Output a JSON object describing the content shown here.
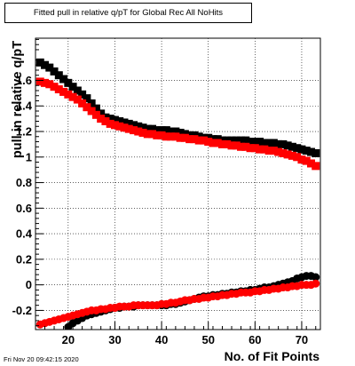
{
  "chart_data": {
    "type": "scatter",
    "title": "Fitted pull in relative q/pT for Global Rec All NoHits",
    "xlabel": "No. of Fit Points",
    "ylabel": "pull in relative q/pT",
    "xlim": [
      13,
      74
    ],
    "ylim": [
      -0.35,
      1.93
    ],
    "xticks": [
      20,
      30,
      40,
      50,
      60,
      70
    ],
    "yticks": [
      -0.2,
      0,
      0.2,
      0.4,
      0.6,
      0.8,
      1,
      1.2,
      1.4,
      1.6
    ],
    "ytick_labels": [
      "-0.2",
      "0",
      "0.2",
      "0.4",
      "0.6",
      "0.8",
      "1",
      "1.2",
      "1.4",
      "1.6"
    ],
    "grid": true,
    "series": [
      {
        "color": "#000000",
        "marker": "square",
        "points": [
          [
            14,
            1.74
          ],
          [
            15,
            1.72
          ],
          [
            16,
            1.7
          ],
          [
            17,
            1.67
          ],
          [
            18,
            1.64
          ],
          [
            19,
            1.61
          ],
          [
            20,
            1.58
          ],
          [
            21,
            1.55
          ],
          [
            22,
            1.52
          ],
          [
            23,
            1.49
          ],
          [
            24,
            1.46
          ],
          [
            25,
            1.42
          ],
          [
            26,
            1.38
          ],
          [
            27,
            1.34
          ],
          [
            28,
            1.31
          ],
          [
            29,
            1.3
          ],
          [
            30,
            1.29
          ],
          [
            31,
            1.28
          ],
          [
            32,
            1.27
          ],
          [
            33,
            1.26
          ],
          [
            34,
            1.25
          ],
          [
            35,
            1.24
          ],
          [
            36,
            1.23
          ],
          [
            37,
            1.22
          ],
          [
            38,
            1.22
          ],
          [
            39,
            1.21
          ],
          [
            40,
            1.21
          ],
          [
            41,
            1.21
          ],
          [
            42,
            1.2
          ],
          [
            43,
            1.2
          ],
          [
            44,
            1.19
          ],
          [
            45,
            1.18
          ],
          [
            46,
            1.17
          ],
          [
            47,
            1.17
          ],
          [
            48,
            1.16
          ],
          [
            49,
            1.15
          ],
          [
            50,
            1.15
          ],
          [
            51,
            1.14
          ],
          [
            52,
            1.14
          ],
          [
            53,
            1.13
          ],
          [
            54,
            1.13
          ],
          [
            55,
            1.13
          ],
          [
            56,
            1.13
          ],
          [
            57,
            1.13
          ],
          [
            58,
            1.13
          ],
          [
            59,
            1.12
          ],
          [
            60,
            1.12
          ],
          [
            61,
            1.12
          ],
          [
            62,
            1.11
          ],
          [
            63,
            1.11
          ],
          [
            64,
            1.11
          ],
          [
            65,
            1.1
          ],
          [
            66,
            1.1
          ],
          [
            67,
            1.09
          ],
          [
            68,
            1.08
          ],
          [
            69,
            1.07
          ],
          [
            70,
            1.06
          ],
          [
            71,
            1.05
          ],
          [
            72,
            1.04
          ],
          [
            73,
            1.03
          ]
        ]
      },
      {
        "color": "#ff0000",
        "marker": "square",
        "points": [
          [
            14,
            1.59
          ],
          [
            15,
            1.58
          ],
          [
            16,
            1.57
          ],
          [
            17,
            1.55
          ],
          [
            18,
            1.53
          ],
          [
            19,
            1.51
          ],
          [
            20,
            1.49
          ],
          [
            21,
            1.47
          ],
          [
            22,
            1.45
          ],
          [
            23,
            1.42
          ],
          [
            24,
            1.39
          ],
          [
            25,
            1.36
          ],
          [
            26,
            1.33
          ],
          [
            27,
            1.3
          ],
          [
            28,
            1.28
          ],
          [
            29,
            1.26
          ],
          [
            30,
            1.25
          ],
          [
            31,
            1.24
          ],
          [
            32,
            1.23
          ],
          [
            33,
            1.22
          ],
          [
            34,
            1.21
          ],
          [
            35,
            1.2
          ],
          [
            36,
            1.19
          ],
          [
            37,
            1.18
          ],
          [
            38,
            1.18
          ],
          [
            39,
            1.17
          ],
          [
            40,
            1.17
          ],
          [
            41,
            1.16
          ],
          [
            42,
            1.16
          ],
          [
            43,
            1.16
          ],
          [
            44,
            1.15
          ],
          [
            45,
            1.15
          ],
          [
            46,
            1.14
          ],
          [
            47,
            1.14
          ],
          [
            48,
            1.13
          ],
          [
            49,
            1.13
          ],
          [
            50,
            1.12
          ],
          [
            51,
            1.11
          ],
          [
            52,
            1.11
          ],
          [
            53,
            1.1
          ],
          [
            54,
            1.1
          ],
          [
            55,
            1.09
          ],
          [
            56,
            1.09
          ],
          [
            57,
            1.08
          ],
          [
            58,
            1.08
          ],
          [
            59,
            1.07
          ],
          [
            60,
            1.07
          ],
          [
            61,
            1.06
          ],
          [
            62,
            1.06
          ],
          [
            63,
            1.05
          ],
          [
            64,
            1.05
          ],
          [
            65,
            1.04
          ],
          [
            66,
            1.03
          ],
          [
            67,
            1.02
          ],
          [
            68,
            1.01
          ],
          [
            69,
            1.0
          ],
          [
            70,
            0.98
          ],
          [
            71,
            0.97
          ],
          [
            72,
            0.95
          ],
          [
            73,
            0.93
          ]
        ]
      },
      {
        "color": "#000000",
        "marker": "circle",
        "points": [
          [
            20,
            -0.33
          ],
          [
            21,
            -0.3
          ],
          [
            22,
            -0.28
          ],
          [
            23,
            -0.26
          ],
          [
            24,
            -0.24
          ],
          [
            25,
            -0.23
          ],
          [
            26,
            -0.22
          ],
          [
            27,
            -0.21
          ],
          [
            28,
            -0.2
          ],
          [
            29,
            -0.19
          ],
          [
            30,
            -0.18
          ],
          [
            31,
            -0.18
          ],
          [
            32,
            -0.17
          ],
          [
            33,
            -0.17
          ],
          [
            34,
            -0.17
          ],
          [
            35,
            -0.16
          ],
          [
            36,
            -0.16
          ],
          [
            37,
            -0.16
          ],
          [
            38,
            -0.16
          ],
          [
            39,
            -0.16
          ],
          [
            40,
            -0.16
          ],
          [
            41,
            -0.16
          ],
          [
            42,
            -0.15
          ],
          [
            43,
            -0.15
          ],
          [
            44,
            -0.14
          ],
          [
            45,
            -0.13
          ],
          [
            46,
            -0.12
          ],
          [
            47,
            -0.11
          ],
          [
            48,
            -0.1
          ],
          [
            49,
            -0.09
          ],
          [
            50,
            -0.09
          ],
          [
            51,
            -0.08
          ],
          [
            52,
            -0.08
          ],
          [
            53,
            -0.07
          ],
          [
            54,
            -0.07
          ],
          [
            55,
            -0.06
          ],
          [
            56,
            -0.06
          ],
          [
            57,
            -0.05
          ],
          [
            58,
            -0.05
          ],
          [
            59,
            -0.04
          ],
          [
            60,
            -0.04
          ],
          [
            61,
            -0.03
          ],
          [
            62,
            -0.02
          ],
          [
            63,
            -0.02
          ],
          [
            64,
            -0.01
          ],
          [
            65,
            0.0
          ],
          [
            66,
            0.01
          ],
          [
            67,
            0.02
          ],
          [
            68,
            0.03
          ],
          [
            69,
            0.05
          ],
          [
            70,
            0.06
          ],
          [
            71,
            0.07
          ],
          [
            72,
            0.07
          ],
          [
            73,
            0.06
          ]
        ]
      },
      {
        "color": "#ff0000",
        "marker": "circle",
        "points": [
          [
            14,
            -0.31
          ],
          [
            15,
            -0.3
          ],
          [
            16,
            -0.29
          ],
          [
            17,
            -0.28
          ],
          [
            18,
            -0.27
          ],
          [
            19,
            -0.26
          ],
          [
            20,
            -0.25
          ],
          [
            21,
            -0.24
          ],
          [
            22,
            -0.23
          ],
          [
            23,
            -0.22
          ],
          [
            24,
            -0.21
          ],
          [
            25,
            -0.2
          ],
          [
            26,
            -0.2
          ],
          [
            27,
            -0.19
          ],
          [
            28,
            -0.19
          ],
          [
            29,
            -0.18
          ],
          [
            30,
            -0.18
          ],
          [
            31,
            -0.17
          ],
          [
            32,
            -0.17
          ],
          [
            33,
            -0.17
          ],
          [
            34,
            -0.16
          ],
          [
            35,
            -0.16
          ],
          [
            36,
            -0.16
          ],
          [
            37,
            -0.16
          ],
          [
            38,
            -0.16
          ],
          [
            39,
            -0.16
          ],
          [
            40,
            -0.15
          ],
          [
            41,
            -0.15
          ],
          [
            42,
            -0.14
          ],
          [
            43,
            -0.14
          ],
          [
            44,
            -0.13
          ],
          [
            45,
            -0.12
          ],
          [
            46,
            -0.12
          ],
          [
            47,
            -0.11
          ],
          [
            48,
            -0.11
          ],
          [
            49,
            -0.1
          ],
          [
            50,
            -0.1
          ],
          [
            51,
            -0.09
          ],
          [
            52,
            -0.09
          ],
          [
            53,
            -0.08
          ],
          [
            54,
            -0.08
          ],
          [
            55,
            -0.07
          ],
          [
            56,
            -0.07
          ],
          [
            57,
            -0.06
          ],
          [
            58,
            -0.06
          ],
          [
            59,
            -0.06
          ],
          [
            60,
            -0.05
          ],
          [
            61,
            -0.05
          ],
          [
            62,
            -0.04
          ],
          [
            63,
            -0.04
          ],
          [
            64,
            -0.03
          ],
          [
            65,
            -0.03
          ],
          [
            66,
            -0.02
          ],
          [
            67,
            -0.02
          ],
          [
            68,
            -0.01
          ],
          [
            69,
            -0.01
          ],
          [
            70,
            0.0
          ],
          [
            71,
            0.0
          ],
          [
            72,
            0.0
          ],
          [
            73,
            0.01
          ]
        ]
      }
    ]
  },
  "datestamp": "Fri Nov 20 09:42:15 2020"
}
